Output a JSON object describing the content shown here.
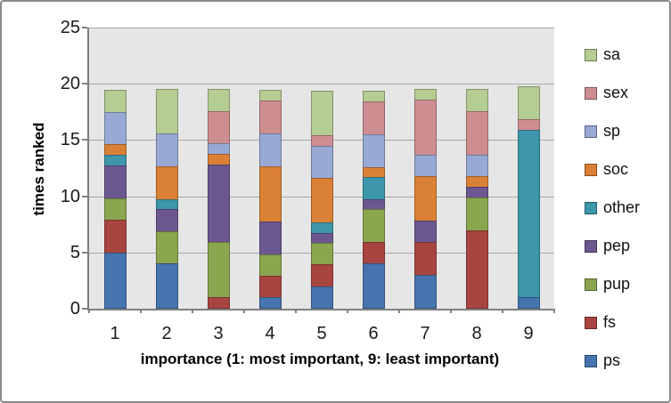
{
  "chart_data": {
    "type": "bar",
    "stacked": true,
    "xlabel": "importance (1: most important, 9: least important)",
    "ylabel": "times ranked",
    "categories": [
      "1",
      "2",
      "3",
      "4",
      "5",
      "6",
      "7",
      "8",
      "9"
    ],
    "ylim": [
      0,
      25
    ],
    "yticks": [
      0,
      5,
      10,
      15,
      20,
      25
    ],
    "grid": true,
    "legend_position": "right",
    "plot_bg_color": "#e6e6e6",
    "gridline_color": "#a6a6a6",
    "series": [
      {
        "name": "ps",
        "color": "#4674ae",
        "values": [
          5,
          4,
          0,
          1,
          2,
          4,
          3,
          0,
          1
        ]
      },
      {
        "name": "fs",
        "color": "#a94541",
        "values": [
          3,
          0,
          1,
          2,
          2,
          2,
          3,
          7,
          0
        ]
      },
      {
        "name": "pup",
        "color": "#8aa64f",
        "values": [
          2,
          3,
          5,
          2,
          2,
          3,
          0,
          3,
          0
        ]
      },
      {
        "name": "pep",
        "color": "#6c5790",
        "values": [
          3,
          2,
          7,
          3,
          1,
          1,
          2,
          1,
          0
        ]
      },
      {
        "name": "other",
        "color": "#3d96a9",
        "values": [
          1,
          1,
          0,
          0,
          1,
          2,
          0,
          0,
          15
        ]
      },
      {
        "name": "soc",
        "color": "#db8135",
        "values": [
          1,
          3,
          1,
          5,
          4,
          1,
          4,
          1,
          0
        ]
      },
      {
        "name": "sp",
        "color": "#97a9d4",
        "values": [
          3,
          3,
          1,
          3,
          3,
          3,
          2,
          2,
          0
        ]
      },
      {
        "name": "sex",
        "color": "#ce8d91",
        "values": [
          0,
          0,
          3,
          3,
          1,
          3,
          5,
          4,
          1
        ]
      },
      {
        "name": "sa",
        "color": "#b5cc92",
        "values": [
          2,
          4,
          2,
          1,
          4,
          1,
          1,
          2,
          3
        ]
      }
    ],
    "legend_order_top_to_bottom": [
      "sa",
      "sex",
      "sp",
      "soc",
      "other",
      "pep",
      "pup",
      "fs",
      "ps"
    ]
  }
}
